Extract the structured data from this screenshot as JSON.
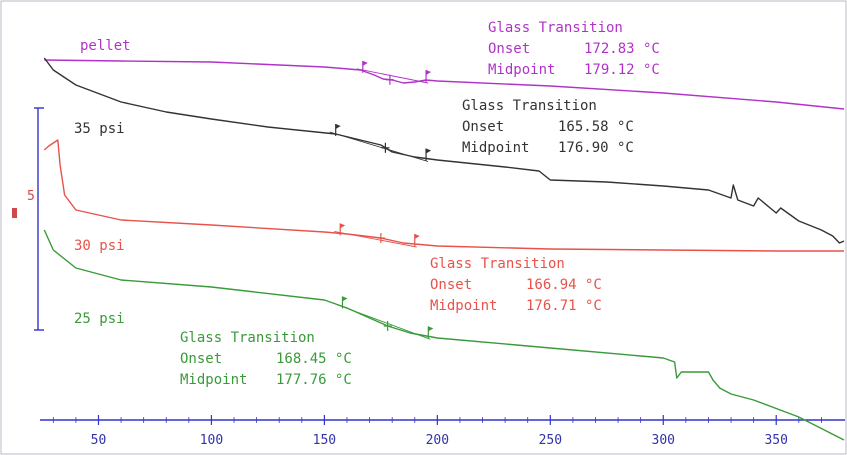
{
  "chart_data": {
    "type": "line",
    "title": "",
    "xlabel": "",
    "ylabel": "",
    "xlim": [
      25,
      380
    ],
    "x_ticks": [
      50,
      100,
      150,
      200,
      250,
      300,
      350
    ],
    "y_axis_fragment": "5",
    "grid": false,
    "series": [
      {
        "name": "pellet",
        "color": "#b033c8",
        "points": [
          [
            26,
            60
          ],
          [
            60,
            61
          ],
          [
            100,
            62
          ],
          [
            150,
            67
          ],
          [
            166,
            70
          ],
          [
            172,
            75
          ],
          [
            176,
            79
          ],
          [
            180,
            80
          ],
          [
            185,
            83
          ],
          [
            190,
            82
          ],
          [
            195,
            80
          ],
          [
            200,
            81
          ],
          [
            250,
            86
          ],
          [
            300,
            93
          ],
          [
            350,
            102
          ],
          [
            380,
            109
          ]
        ],
        "markers": [
          167,
          179,
          195
        ],
        "annotation": {
          "heading": "Glass Transition",
          "onset_label": "Onset",
          "onset_value": "172.83 °C",
          "midpoint_label": "Midpoint",
          "midpoint_value": "179.12 °C"
        }
      },
      {
        "name": "35 psi",
        "color": "#333333",
        "points": [
          [
            26,
            58
          ],
          [
            30,
            70
          ],
          [
            40,
            85
          ],
          [
            60,
            102
          ],
          [
            80,
            112
          ],
          [
            100,
            119
          ],
          [
            125,
            127
          ],
          [
            155,
            134
          ],
          [
            175,
            145
          ],
          [
            180,
            152
          ],
          [
            190,
            157
          ],
          [
            200,
            160
          ],
          [
            230,
            167
          ],
          [
            245,
            171
          ],
          [
            250,
            180
          ],
          [
            275,
            182
          ],
          [
            300,
            186
          ],
          [
            320,
            190
          ],
          [
            330,
            198
          ],
          [
            331,
            185
          ],
          [
            333,
            200
          ],
          [
            340,
            206
          ],
          [
            342,
            198
          ],
          [
            350,
            213
          ],
          [
            352,
            208
          ],
          [
            360,
            221
          ],
          [
            370,
            230
          ],
          [
            375,
            236
          ],
          [
            378,
            243
          ],
          [
            380,
            241
          ]
        ],
        "markers": [
          155,
          177,
          195
        ],
        "annotation": {
          "heading": "Glass Transition",
          "onset_label": "Onset",
          "onset_value": "165.58 °C",
          "midpoint_label": "Midpoint",
          "midpoint_value": "176.90 °C"
        }
      },
      {
        "name": "30 psi",
        "color": "#e8524a",
        "points": [
          [
            26,
            150
          ],
          [
            28,
            146
          ],
          [
            32,
            140
          ],
          [
            33,
            165
          ],
          [
            35,
            195
          ],
          [
            40,
            210
          ],
          [
            60,
            220
          ],
          [
            100,
            225
          ],
          [
            150,
            232
          ],
          [
            160,
            234
          ],
          [
            175,
            238
          ],
          [
            185,
            243
          ],
          [
            190,
            244
          ],
          [
            200,
            246
          ],
          [
            250,
            249
          ],
          [
            300,
            250
          ],
          [
            350,
            251
          ],
          [
            380,
            251
          ]
        ],
        "markers": [
          157,
          175,
          190
        ],
        "annotation": {
          "heading": "Glass Transition",
          "onset_label": "Onset",
          "onset_value": "166.94 °C",
          "midpoint_label": "Midpoint",
          "midpoint_value": "176.71 °C"
        }
      },
      {
        "name": "25 psi",
        "color": "#3a9a3a",
        "points": [
          [
            26,
            230
          ],
          [
            30,
            250
          ],
          [
            40,
            268
          ],
          [
            60,
            280
          ],
          [
            100,
            287
          ],
          [
            150,
            300
          ],
          [
            160,
            308
          ],
          [
            170,
            318
          ],
          [
            178,
            326
          ],
          [
            188,
            333
          ],
          [
            200,
            338
          ],
          [
            250,
            348
          ],
          [
            300,
            358
          ],
          [
            305,
            362
          ],
          [
            306,
            378
          ],
          [
            308,
            372
          ],
          [
            320,
            372
          ],
          [
            322,
            380
          ],
          [
            325,
            388
          ],
          [
            330,
            394
          ],
          [
            340,
            400
          ],
          [
            360,
            417
          ],
          [
            380,
            440
          ]
        ],
        "markers": [
          158,
          178,
          196
        ],
        "annotation": {
          "heading": "Glass Transition",
          "onset_label": "Onset",
          "onset_value": "168.45 °C",
          "midpoint_label": "Midpoint",
          "midpoint_value": "177.76 °C"
        }
      }
    ]
  }
}
